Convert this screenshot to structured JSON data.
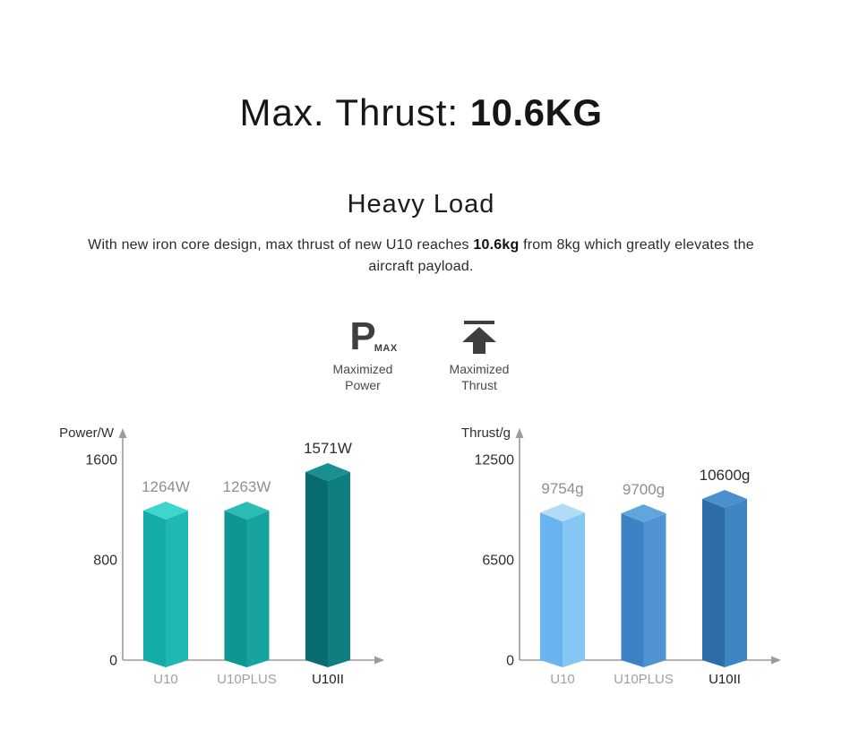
{
  "page": {
    "title_prefix": "Max. Thrust: ",
    "title_value": "10.6KG",
    "section_heading": "Heavy Load",
    "paragraph": {
      "part1": "With new iron core design, max thrust of new U10 reaches ",
      "bold": "10.6kg",
      "part2": " from 8kg which greatly elevates the aircraft payload."
    }
  },
  "features": [
    {
      "icon": "p-max-icon",
      "p_letter": "P",
      "max_text": "MAX",
      "line1": "Maximized",
      "line2": "Power"
    },
    {
      "icon": "thrust-arrow-icon",
      "line1": "Maximized",
      "line2": "Thrust"
    }
  ],
  "icon_color": "#3f3f3f",
  "chart_data": [
    {
      "type": "bar",
      "style": "3d-prism",
      "axis_label": "Power/W",
      "categories": [
        "U10",
        "U10PLUS",
        "U10II"
      ],
      "values": [
        1264,
        1263,
        1571
      ],
      "value_labels": [
        "1264W",
        "1263W",
        "1571W"
      ],
      "yticks": [
        "0",
        "800",
        "1600"
      ],
      "ylim": [
        0,
        1600
      ],
      "grid": false,
      "axis_color": "#9b9b9b",
      "tick_color": "#2f2f2f",
      "bar_colors": [
        {
          "top": "#3FD4CC",
          "left": "#14ABA8",
          "right": "#1EB9B5"
        },
        {
          "top": "#2BBCB5",
          "left": "#0F9593",
          "right": "#17A3A0"
        },
        {
          "top": "#1A8F91",
          "left": "#076B6F",
          "right": "#0E7E80"
        }
      ],
      "value_label_colors": [
        "#8F8F8F",
        "#8F8F8F",
        "#2C2C2C"
      ],
      "category_colors": [
        "#9FA0A0",
        "#9FA0A0",
        "#1F1F1F"
      ]
    },
    {
      "type": "bar",
      "style": "3d-prism",
      "axis_label": "Thrust/g",
      "categories": [
        "U10",
        "U10PLUS",
        "U10II"
      ],
      "values": [
        9754,
        9700,
        10600
      ],
      "value_labels": [
        "9754g",
        "9700g",
        "10600g"
      ],
      "yticks": [
        "0",
        "6500",
        "12500"
      ],
      "ylim": [
        0,
        12500
      ],
      "grid": false,
      "axis_color": "#9b9b9b",
      "tick_color": "#2f2f2f",
      "bar_colors": [
        {
          "top": "#B3DAF7",
          "left": "#69B4EF",
          "right": "#86C6F4"
        },
        {
          "top": "#5FA6DD",
          "left": "#3B83C5",
          "right": "#5093D2"
        },
        {
          "top": "#4A90CE",
          "left": "#2C6CA7",
          "right": "#3E85C4"
        }
      ],
      "value_label_colors": [
        "#8F8F8F",
        "#8F8F8F",
        "#2C2C2C"
      ],
      "category_colors": [
        "#9FA0A0",
        "#9FA0A0",
        "#1F1F1F"
      ]
    }
  ]
}
